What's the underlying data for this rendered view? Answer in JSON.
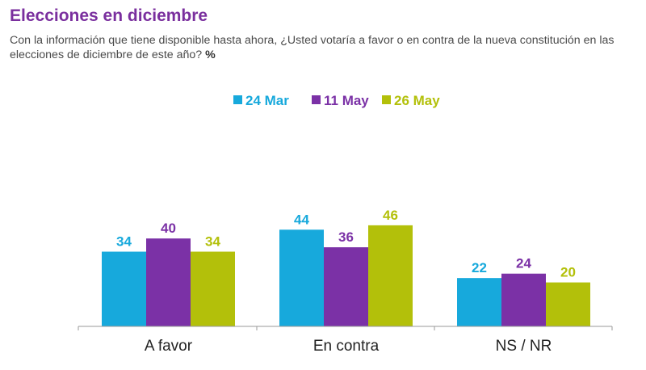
{
  "page": {
    "title": "Elecciones en diciembre",
    "subtitle": "Con la información que tiene disponible hasta ahora, ¿Usted votaría a favor o en contra de la nueva constitución en las elecciones de diciembre de este año?",
    "unit": "%"
  },
  "chart_data": {
    "type": "bar",
    "title": "Elecciones en diciembre",
    "categories": [
      "A favor",
      "En contra",
      "NS / NR"
    ],
    "series": [
      {
        "name": "24 Mar",
        "color": "#17a9dc",
        "values": [
          34,
          44,
          22
        ]
      },
      {
        "name": "11 May",
        "color": "#7b31a6",
        "values": [
          40,
          36,
          24
        ]
      },
      {
        "name": "26 May",
        "color": "#b3c00a",
        "values": [
          34,
          46,
          20
        ]
      }
    ],
    "ylim": [
      0,
      46
    ],
    "grid": false,
    "legend_position": "top-center",
    "data_labels": true
  }
}
